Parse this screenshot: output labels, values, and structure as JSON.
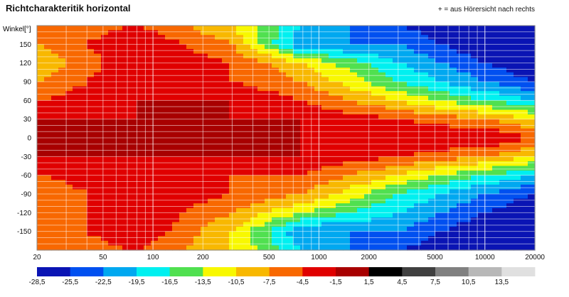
{
  "title": "Richtcharakteritik horizontal",
  "note": "+ = aus Hörersicht nach rechts",
  "chart_data": {
    "type": "heatmap",
    "title": "Richtcharakteritik horizontal",
    "ylabel": "Winkel[°]",
    "xlabel": "",
    "x_scale": "log",
    "xlim": [
      20,
      20000
    ],
    "ylim": [
      -180,
      180
    ],
    "x_ticks": [
      "20",
      "50",
      "100",
      "200",
      "500",
      "1000",
      "2000",
      "5000",
      "10000",
      "20000"
    ],
    "y_ticks": [
      "150",
      "120",
      "90",
      "60",
      "30",
      "0",
      "-30",
      "-60",
      "-90",
      "-120",
      "-150"
    ],
    "colorbar": {
      "labels": [
        "-28,5",
        "-25,5",
        "-22,5",
        "-19,5",
        "-16,5",
        "-13,5",
        "-10,5",
        "-7,5",
        "-4,5",
        "-1,5",
        "1,5",
        "4,5",
        "7,5",
        "10,5",
        "13,5"
      ],
      "colors": [
        "#0a14b4",
        "#0050f0",
        "#00a8f0",
        "#00f0f0",
        "#50e050",
        "#f8f800",
        "#f8b800",
        "#f86800",
        "#e00000",
        "#a80000",
        "#000000",
        "#404040",
        "#808080",
        "#b8b8b8",
        "#e0e0e0"
      ]
    },
    "z_description_levels_at_x_hz": [
      {
        "x": 20,
        "values_by_angle": {
          "180": -7.5,
          "150": -7.5,
          "120": -10.5,
          "90": -7.5,
          "60": -4.5,
          "30": -1.5,
          "0": -1.5,
          "-30": -1.5,
          "-60": -4.5,
          "-90": -7.5,
          "-120": -7.5,
          "-150": -7.5
        }
      },
      {
        "x": 80,
        "values_by_angle": {
          "180": -4.5,
          "150": -1.5,
          "120": -1.5,
          "90": -1.5,
          "60": -1.5,
          "30": -1.5,
          "0": -1.5,
          "-30": -1.5,
          "-60": -1.5,
          "-90": -1.5,
          "-120": -1.5,
          "-150": -1.5
        }
      },
      {
        "x": 300,
        "values_by_angle": {
          "180": -10.5,
          "150": -7.5,
          "120": -4.5,
          "90": -4.5,
          "60": -1.5,
          "30": -1.5,
          "0": -1.5,
          "-30": -1.5,
          "-60": -4.5,
          "-90": -4.5,
          "-120": -7.5,
          "-150": -10.5
        }
      },
      {
        "x": 800,
        "values_by_angle": {
          "180": -19.5,
          "150": -22.5,
          "120": -10.5,
          "90": -7.5,
          "60": -4.5,
          "30": -1.5,
          "0": -1.5,
          "-30": -1.5,
          "-60": -4.5,
          "-90": -7.5,
          "-120": -13.5,
          "-150": -22.5
        }
      },
      {
        "x": 3000,
        "values_by_angle": {
          "180": -25.5,
          "150": -22.5,
          "120": -19.5,
          "90": -16.5,
          "60": -10.5,
          "30": -4.5,
          "0": -1.5,
          "-30": -4.5,
          "-60": -10.5,
          "-90": -16.5,
          "-120": -19.5,
          "-150": -22.5
        }
      },
      {
        "x": 10000,
        "values_by_angle": {
          "180": -28.5,
          "150": -28.5,
          "120": -25.5,
          "90": -22.5,
          "60": -16.5,
          "30": -7.5,
          "0": -1.5,
          "-30": -7.5,
          "-60": -16.5,
          "-90": -22.5,
          "-120": -25.5,
          "-150": -28.5
        }
      },
      {
        "x": 20000,
        "values_by_angle": {
          "180": -28.5,
          "150": -28.5,
          "120": -28.5,
          "90": -25.5,
          "60": -19.5,
          "30": -10.5,
          "0": -4.5,
          "-30": -10.5,
          "-60": -19.5,
          "-90": -25.5,
          "-120": -28.5,
          "-150": -28.5
        }
      }
    ]
  }
}
